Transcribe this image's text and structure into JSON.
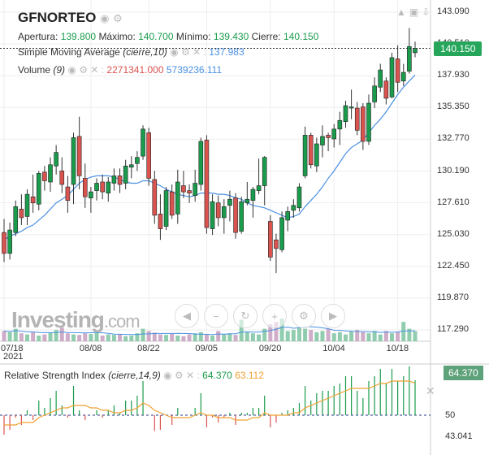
{
  "header": {
    "ticker": "GFNORTEO",
    "apertura_label": "Apertura:",
    "apertura": "139.800",
    "maximo_label": "Máximo:",
    "maximo": "140.700",
    "minimo_label": "Mínimo:",
    "minimo": "139.430",
    "cierre_label": "Cierre:",
    "cierre": "140.150"
  },
  "sma": {
    "label": "Simple Moving Average",
    "params": "(cierre,10)",
    "value": "137.983"
  },
  "volume": {
    "label": "Volume",
    "params": "(9)",
    "value_down": "2271341.000",
    "value_ma": "5739236.111"
  },
  "rsi": {
    "label": "Relative Strength Index",
    "params": "(cierre,14,9)",
    "value": "64.370",
    "signal": "63.112",
    "level": "50",
    "min_label": "43.041",
    "tag": "64.370"
  },
  "price_tag": "140.150",
  "y_axis": [
    "143.090",
    "140.510",
    "137.930",
    "135.350",
    "132.770",
    "130.190",
    "127.610",
    "125.030",
    "122.450",
    "119.870",
    "117.290"
  ],
  "x_axis": [
    "07/18",
    "08/08",
    "08/22",
    "09/05",
    "09/20",
    "10/04",
    "10/18"
  ],
  "x_year": "2021",
  "watermark": {
    "main": "Investing",
    "suffix": ".com"
  },
  "icons": [
    "eye-icon",
    "gear-icon",
    "close-icon",
    "up-icon",
    "lock-icon",
    "download-icon"
  ],
  "colors": {
    "up": "#1a9c4c",
    "down": "#d9534f",
    "sma": "#4a90e2",
    "rsi_signal": "#f0a030",
    "price_tag": "#26a65b"
  },
  "chart_data": {
    "type": "candlestick",
    "title": "GFNORTEO",
    "ylim": [
      117.29,
      143.09
    ],
    "candles": [
      {
        "o": 125.2,
        "h": 126.3,
        "l": 122.8,
        "c": 123.5
      },
      {
        "o": 123.5,
        "h": 126.0,
        "l": 123.0,
        "c": 125.4
      },
      {
        "o": 125.2,
        "h": 127.8,
        "l": 124.9,
        "c": 127.3
      },
      {
        "o": 127.1,
        "h": 128.3,
        "l": 125.8,
        "c": 126.4
      },
      {
        "o": 126.5,
        "h": 128.7,
        "l": 125.8,
        "c": 128.3
      },
      {
        "o": 128.1,
        "h": 129.9,
        "l": 126.8,
        "c": 127.6
      },
      {
        "o": 127.5,
        "h": 130.2,
        "l": 127.0,
        "c": 130.0
      },
      {
        "o": 130.1,
        "h": 130.6,
        "l": 128.6,
        "c": 129.4
      },
      {
        "o": 129.3,
        "h": 131.3,
        "l": 128.5,
        "c": 130.7
      },
      {
        "o": 130.6,
        "h": 132.3,
        "l": 129.9,
        "c": 131.7
      },
      {
        "o": 130.2,
        "h": 131.3,
        "l": 128.4,
        "c": 129.1
      },
      {
        "o": 128.9,
        "h": 129.8,
        "l": 126.8,
        "c": 127.8
      },
      {
        "o": 129.1,
        "h": 133.3,
        "l": 127.5,
        "c": 132.9
      },
      {
        "o": 133.0,
        "h": 134.6,
        "l": 128.7,
        "c": 129.8
      },
      {
        "o": 129.6,
        "h": 130.8,
        "l": 127.2,
        "c": 128.1
      },
      {
        "o": 128.0,
        "h": 128.9,
        "l": 126.8,
        "c": 128.5
      },
      {
        "o": 128.6,
        "h": 129.6,
        "l": 127.8,
        "c": 129.2
      },
      {
        "o": 129.3,
        "h": 129.9,
        "l": 127.9,
        "c": 128.5
      },
      {
        "o": 128.4,
        "h": 129.7,
        "l": 127.7,
        "c": 129.3
      },
      {
        "o": 129.2,
        "h": 130.4,
        "l": 128.6,
        "c": 129.8
      },
      {
        "o": 129.8,
        "h": 130.4,
        "l": 128.4,
        "c": 129.1
      },
      {
        "o": 129.2,
        "h": 131.1,
        "l": 128.7,
        "c": 130.6
      },
      {
        "o": 130.5,
        "h": 131.4,
        "l": 129.6,
        "c": 130.7
      },
      {
        "o": 130.8,
        "h": 131.8,
        "l": 130.2,
        "c": 131.3
      },
      {
        "o": 131.4,
        "h": 133.9,
        "l": 131.1,
        "c": 133.6
      },
      {
        "o": 133.3,
        "h": 133.7,
        "l": 129.0,
        "c": 129.6
      },
      {
        "o": 129.5,
        "h": 130.2,
        "l": 125.9,
        "c": 126.6
      },
      {
        "o": 126.7,
        "h": 128.3,
        "l": 124.6,
        "c": 125.5
      },
      {
        "o": 125.7,
        "h": 128.9,
        "l": 125.4,
        "c": 128.6
      },
      {
        "o": 128.5,
        "h": 129.1,
        "l": 126.3,
        "c": 126.6
      },
      {
        "o": 126.7,
        "h": 130.3,
        "l": 125.9,
        "c": 129.3
      },
      {
        "o": 129.0,
        "h": 130.2,
        "l": 128.0,
        "c": 128.5
      },
      {
        "o": 128.6,
        "h": 129.1,
        "l": 127.6,
        "c": 128.4
      },
      {
        "o": 128.2,
        "h": 130.3,
        "l": 127.7,
        "c": 129.2
      },
      {
        "o": 129.1,
        "h": 132.9,
        "l": 128.6,
        "c": 132.6
      },
      {
        "o": 132.7,
        "h": 133.1,
        "l": 125.1,
        "c": 125.6
      },
      {
        "o": 125.5,
        "h": 128.3,
        "l": 125.0,
        "c": 127.7
      },
      {
        "o": 127.6,
        "h": 128.2,
        "l": 125.7,
        "c": 126.4
      },
      {
        "o": 126.4,
        "h": 127.9,
        "l": 125.1,
        "c": 127.3
      },
      {
        "o": 127.4,
        "h": 128.6,
        "l": 126.1,
        "c": 127.9
      },
      {
        "o": 128.0,
        "h": 128.4,
        "l": 124.7,
        "c": 125.2
      },
      {
        "o": 125.3,
        "h": 128.1,
        "l": 125.1,
        "c": 127.7
      },
      {
        "o": 127.6,
        "h": 129.3,
        "l": 127.4,
        "c": 127.9
      },
      {
        "o": 127.8,
        "h": 128.9,
        "l": 126.4,
        "c": 128.7
      },
      {
        "o": 128.6,
        "h": 131.2,
        "l": 128.3,
        "c": 129.0
      },
      {
        "o": 129.0,
        "h": 131.4,
        "l": 127.4,
        "c": 131.3
      },
      {
        "o": 126.1,
        "h": 126.6,
        "l": 122.9,
        "c": 123.2
      },
      {
        "o": 124.6,
        "h": 125.1,
        "l": 121.9,
        "c": 123.9
      },
      {
        "o": 123.8,
        "h": 126.9,
        "l": 123.6,
        "c": 126.4
      },
      {
        "o": 126.2,
        "h": 127.3,
        "l": 125.3,
        "c": 126.9
      },
      {
        "o": 127.0,
        "h": 127.9,
        "l": 126.4,
        "c": 127.4
      },
      {
        "o": 127.2,
        "h": 129.2,
        "l": 126.9,
        "c": 128.9
      },
      {
        "o": 129.8,
        "h": 133.8,
        "l": 129.6,
        "c": 133.1
      },
      {
        "o": 133.1,
        "h": 133.3,
        "l": 130.4,
        "c": 130.7
      },
      {
        "o": 130.6,
        "h": 132.9,
        "l": 130.1,
        "c": 132.4
      },
      {
        "o": 132.3,
        "h": 133.9,
        "l": 131.3,
        "c": 133.0
      },
      {
        "o": 133.1,
        "h": 133.3,
        "l": 131.8,
        "c": 132.9
      },
      {
        "o": 132.8,
        "h": 134.0,
        "l": 132.1,
        "c": 133.6
      },
      {
        "o": 133.6,
        "h": 135.0,
        "l": 132.3,
        "c": 134.3
      },
      {
        "o": 134.2,
        "h": 135.9,
        "l": 133.7,
        "c": 135.5
      },
      {
        "o": 135.3,
        "h": 136.8,
        "l": 134.4,
        "c": 135.4
      },
      {
        "o": 135.3,
        "h": 135.8,
        "l": 133.1,
        "c": 133.5
      },
      {
        "o": 135.4,
        "h": 135.7,
        "l": 131.9,
        "c": 132.6
      },
      {
        "o": 132.6,
        "h": 136.4,
        "l": 132.3,
        "c": 135.7
      },
      {
        "o": 135.8,
        "h": 137.8,
        "l": 135.3,
        "c": 137.1
      },
      {
        "o": 137.0,
        "h": 138.9,
        "l": 136.6,
        "c": 138.4
      },
      {
        "o": 137.5,
        "h": 137.8,
        "l": 135.6,
        "c": 136.1
      },
      {
        "o": 136.2,
        "h": 139.8,
        "l": 136.1,
        "c": 139.4
      },
      {
        "o": 139.3,
        "h": 140.4,
        "l": 136.6,
        "c": 137.4
      },
      {
        "o": 137.5,
        "h": 138.9,
        "l": 137.1,
        "c": 138.2
      },
      {
        "o": 138.3,
        "h": 141.8,
        "l": 138.1,
        "c": 140.3
      },
      {
        "o": 139.8,
        "h": 140.7,
        "l": 139.43,
        "c": 140.15
      }
    ],
    "sma_10": [
      124.6,
      124.9,
      125.1,
      125.3,
      125.6,
      125.8,
      126.2,
      126.6,
      127.1,
      127.6,
      127.9,
      128.2,
      128.7,
      129.2,
      129.5,
      129.7,
      129.8,
      129.8,
      129.8,
      129.7,
      129.5,
      129.3,
      129.2,
      129.2,
      129.4,
      129.4,
      129.2,
      129.0,
      128.7,
      128.5,
      128.3,
      128.2,
      128.1,
      128.2,
      128.4,
      128.4,
      128.4,
      128.3,
      128.3,
      128.2,
      128.0,
      127.9,
      127.6,
      127.4,
      127.3,
      127.2,
      127.0,
      126.8,
      126.6,
      126.4,
      126.5,
      126.7,
      127.3,
      127.8,
      128.3,
      128.9,
      129.6,
      130.2,
      130.9,
      131.6,
      132.1,
      132.4,
      132.7,
      133.3,
      133.9,
      134.4,
      135.0,
      135.7,
      136.4,
      137.0,
      137.5,
      137.98
    ],
    "volume": [
      0.45,
      0.4,
      0.55,
      0.35,
      0.3,
      0.42,
      0.25,
      0.3,
      0.38,
      0.5,
      0.6,
      0.35,
      0.3,
      0.28,
      0.35,
      0.32,
      0.4,
      0.25,
      0.3,
      0.28,
      0.3,
      0.22,
      0.25,
      0.35,
      0.55,
      0.45,
      0.38,
      0.3,
      0.28,
      0.32,
      0.25,
      0.22,
      0.3,
      0.35,
      0.4,
      0.3,
      0.25,
      0.45,
      0.3,
      0.35,
      0.28,
      0.95,
      0.4,
      0.35,
      0.3,
      0.55,
      0.75,
      0.85,
      1.0,
      0.45,
      0.5,
      0.6,
      0.55,
      0.5,
      0.4,
      0.45,
      0.55,
      0.35,
      0.4,
      0.3,
      0.45,
      0.5,
      0.4,
      0.35,
      0.45,
      0.3,
      0.45,
      0.35,
      0.4,
      0.85,
      0.55,
      0.45
    ],
    "rsi": [
      42,
      44,
      49,
      46,
      52,
      48,
      56,
      53,
      57,
      60,
      54,
      49,
      62,
      52,
      48,
      50,
      52,
      49,
      52,
      54,
      51,
      56,
      56,
      58,
      64,
      50,
      43.5,
      44,
      50,
      46,
      53,
      50,
      50,
      53,
      59,
      45,
      49,
      47,
      49,
      51,
      46,
      51,
      51,
      53,
      53,
      58,
      45,
      47,
      51,
      52,
      53,
      55,
      62,
      56,
      59,
      60,
      60,
      62,
      63,
      66,
      66,
      60,
      57,
      64,
      66,
      69,
      63,
      69,
      64,
      66,
      70,
      64.37
    ],
    "rsi_signal": [
      46,
      46,
      46,
      47,
      47,
      47,
      49,
      50,
      51,
      52,
      53,
      53,
      54,
      54,
      54,
      53,
      53,
      52,
      52,
      51,
      51,
      52,
      52,
      53,
      55,
      54,
      52,
      51,
      50,
      49,
      49,
      49,
      49,
      50,
      51,
      50,
      50,
      49,
      49,
      49,
      48,
      48,
      48,
      49,
      49,
      51,
      50,
      50,
      50,
      50,
      51,
      51,
      53,
      54,
      55,
      56,
      57,
      58,
      59,
      60,
      61,
      61,
      61,
      61,
      62,
      63,
      63,
      64,
      64,
      64,
      64,
      63.11
    ],
    "y_ticks": [
      143.09,
      140.51,
      137.93,
      135.35,
      132.77,
      130.19,
      127.61,
      125.03,
      122.45,
      119.87,
      117.29
    ]
  }
}
